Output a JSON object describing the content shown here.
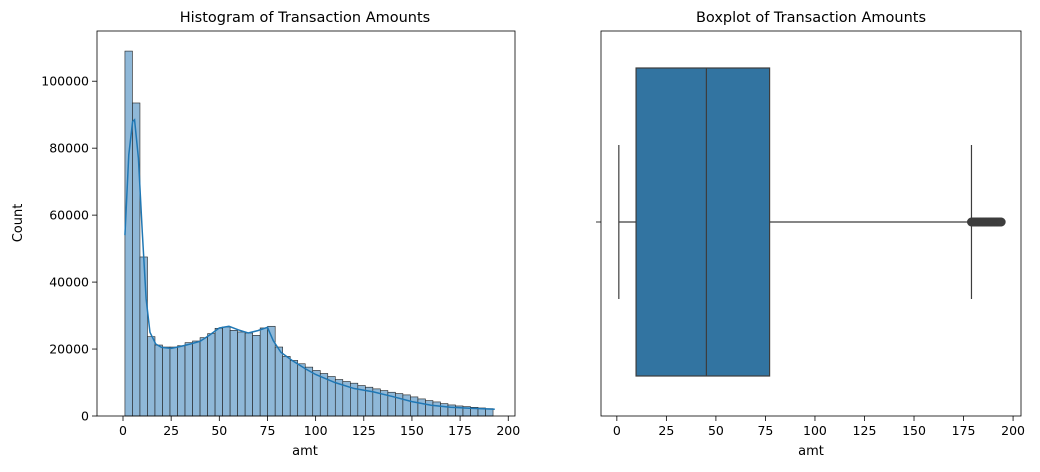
{
  "chart_data": [
    {
      "type": "bar",
      "title": "Histogram of Transaction Amounts",
      "xlabel": "amt",
      "ylabel": "Count",
      "xlim": [
        -13.5,
        203.5
      ],
      "ylim": [
        0,
        115000
      ],
      "xticks": [
        0,
        25,
        50,
        75,
        100,
        125,
        150,
        175,
        200
      ],
      "yticks": [
        0,
        20000,
        40000,
        60000,
        80000,
        100000
      ],
      "bin_width": 3.9,
      "bin_start": 1.0,
      "values": [
        109000,
        93500,
        47500,
        23700,
        21200,
        20600,
        20600,
        21000,
        21900,
        22400,
        23400,
        24600,
        26200,
        26600,
        25600,
        25100,
        24800,
        24100,
        26300,
        26800,
        20600,
        17800,
        16600,
        15600,
        14600,
        13600,
        12700,
        11800,
        10900,
        10300,
        9800,
        9100,
        8600,
        8100,
        7600,
        7100,
        6700,
        6300,
        5700,
        5100,
        4600,
        4200,
        3700,
        3300,
        3000,
        2800,
        2600,
        2400,
        2200
      ],
      "kde": {
        "name": "",
        "x": [
          1,
          3,
          5,
          6,
          8,
          10,
          12,
          14,
          17,
          20,
          25,
          30,
          35,
          40,
          45,
          50,
          55,
          60,
          65,
          70,
          75,
          78,
          82,
          88,
          95,
          100,
          110,
          120,
          130,
          140,
          150,
          160,
          170,
          180,
          190,
          193
        ],
        "y": [
          54000,
          78000,
          88000,
          88500,
          77000,
          55000,
          35000,
          25000,
          21500,
          20500,
          20200,
          20800,
          21500,
          22300,
          24200,
          26300,
          26800,
          25700,
          24800,
          25500,
          26500,
          22500,
          19000,
          16500,
          14000,
          12400,
          10000,
          8200,
          7200,
          5800,
          4300,
          3200,
          2600,
          2300,
          2100,
          2000
        ]
      },
      "grid": false
    },
    {
      "type": "boxplot",
      "title": "Boxplot of Transaction Amounts",
      "xlabel": "amt",
      "xlim": [
        -8,
        204
      ],
      "xticks": [
        0,
        25,
        50,
        75,
        100,
        125,
        150,
        175,
        200
      ],
      "stats": {
        "whisker_low": 1,
        "q1": 9.7,
        "median": 45.2,
        "q3": 77.1,
        "whisker_high": 179
      },
      "outliers": {
        "from": 179,
        "to": 194
      },
      "grid": false
    }
  ]
}
